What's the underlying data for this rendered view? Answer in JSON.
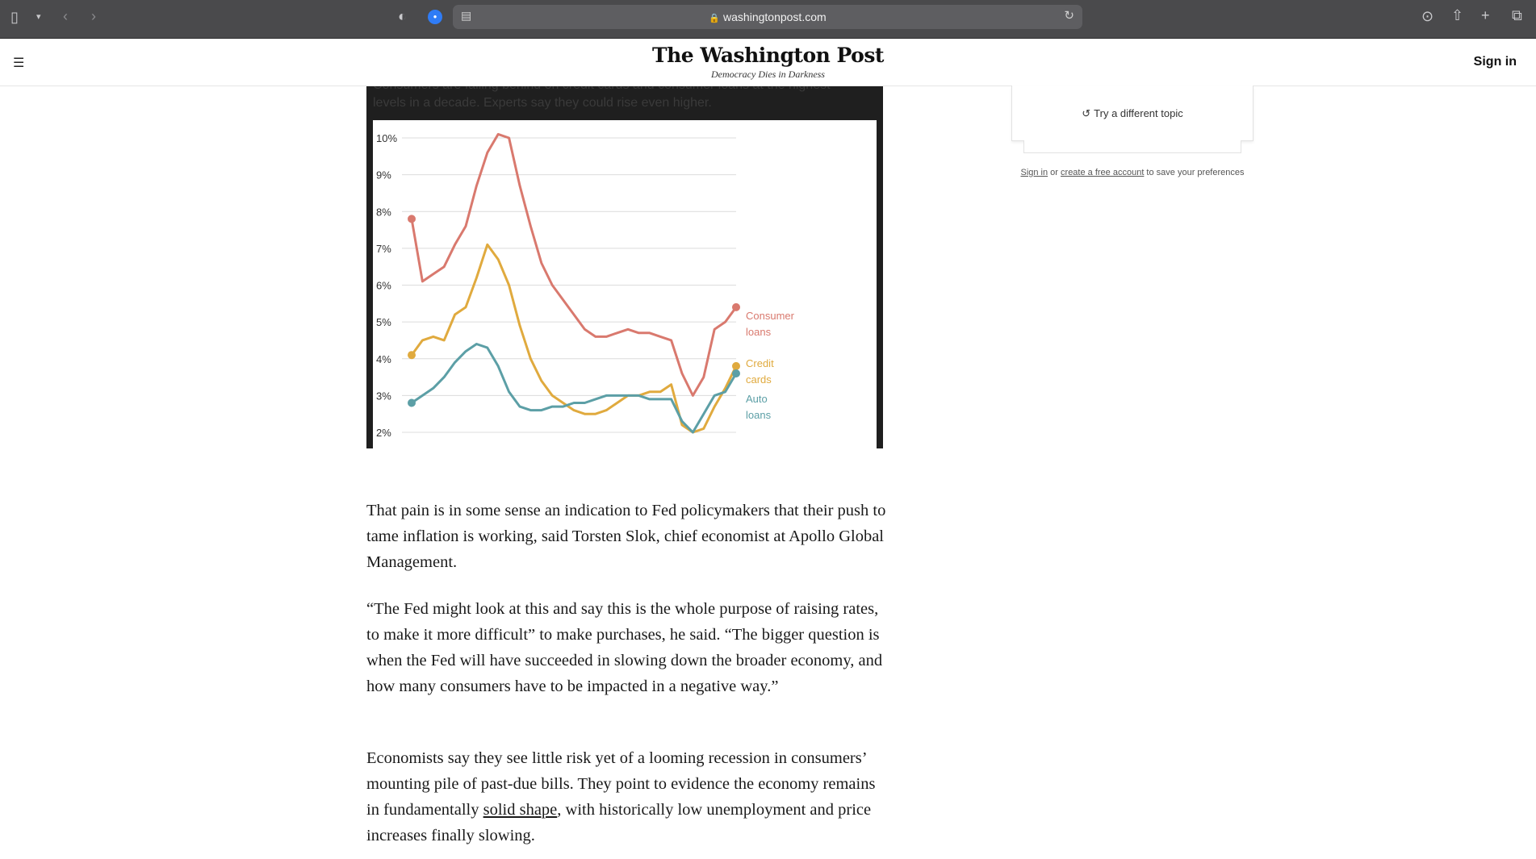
{
  "browser": {
    "url": "washingtonpost.com"
  },
  "header": {
    "logo": "The Washington Post",
    "tagline": "Democracy Dies in Darkness",
    "sign_in": "Sign in"
  },
  "chart_overflow_text": {
    "line1": "Consumers are falling behind on credit cards and consumer loans at the highest",
    "line2": "levels in a decade. Experts say they could rise even higher."
  },
  "chart_data": {
    "type": "line",
    "yticks": [
      "10%",
      "9%",
      "8%",
      "7%",
      "6%",
      "5%",
      "4%",
      "3%",
      "2%"
    ],
    "ylim": [
      2,
      10
    ],
    "series": [
      {
        "name": "Consumer loans",
        "label_line1": "Consumer",
        "label_line2": "loans",
        "color": "#d9796e",
        "values": [
          7.8,
          6.1,
          6.3,
          6.5,
          7.1,
          7.6,
          8.7,
          9.6,
          10.1,
          10.0,
          8.7,
          7.6,
          6.6,
          6.0,
          5.6,
          5.2,
          4.8,
          4.6,
          4.6,
          4.7,
          4.8,
          4.7,
          4.7,
          4.6,
          4.5,
          3.6,
          3.0,
          3.5,
          4.8,
          5.0,
          5.4
        ]
      },
      {
        "name": "Credit cards",
        "label_line1": "Credit",
        "label_line2": "cards",
        "color": "#e0aa3e",
        "values": [
          4.1,
          4.5,
          4.6,
          4.5,
          5.2,
          5.4,
          6.2,
          7.1,
          6.7,
          6.0,
          4.9,
          4.0,
          3.4,
          3.0,
          2.8,
          2.6,
          2.5,
          2.5,
          2.6,
          2.8,
          3.0,
          3.0,
          3.1,
          3.1,
          3.3,
          2.2,
          2.0,
          2.1,
          2.7,
          3.2,
          3.8
        ]
      },
      {
        "name": "Auto loans",
        "label_line1": "Auto",
        "label_line2": "loans",
        "color": "#5c9fa6",
        "values": [
          2.8,
          3.0,
          3.2,
          3.5,
          3.9,
          4.2,
          4.4,
          4.3,
          3.8,
          3.1,
          2.7,
          2.6,
          2.6,
          2.7,
          2.7,
          2.8,
          2.8,
          2.9,
          3.0,
          3.0,
          3.0,
          3.0,
          2.9,
          2.9,
          2.9,
          2.3,
          2.0,
          2.5,
          3.0,
          3.1,
          3.6
        ]
      }
    ]
  },
  "article": {
    "p1": "That pain is in some sense an indication to Fed policymakers that their push to tame inflation is working, said Torsten Slok, chief economist at Apollo Global Management.",
    "p2": "“The Fed might look at this and say this is the whole purpose of raising rates, to make it more difficult” to make purchases, he said. “The bigger question is when the Fed will have succeeded in slowing down the broader economy, and how many consumers have to be impacted in a negative way.”",
    "p3_before": "Economists say they see little risk yet of a looming recession in consumers’ mounting pile of past-due bills. They point to evidence the economy remains in fundamentally ",
    "p3_link": "solid shape",
    "p3_after": ", with historically low unemployment and price increases finally slowing."
  },
  "sidebar": {
    "try_topic": "Try a different topic",
    "prefs_signin": "Sign in",
    "prefs_or": " or ",
    "prefs_create": "create a free account",
    "prefs_rest": " to save your preferences"
  }
}
